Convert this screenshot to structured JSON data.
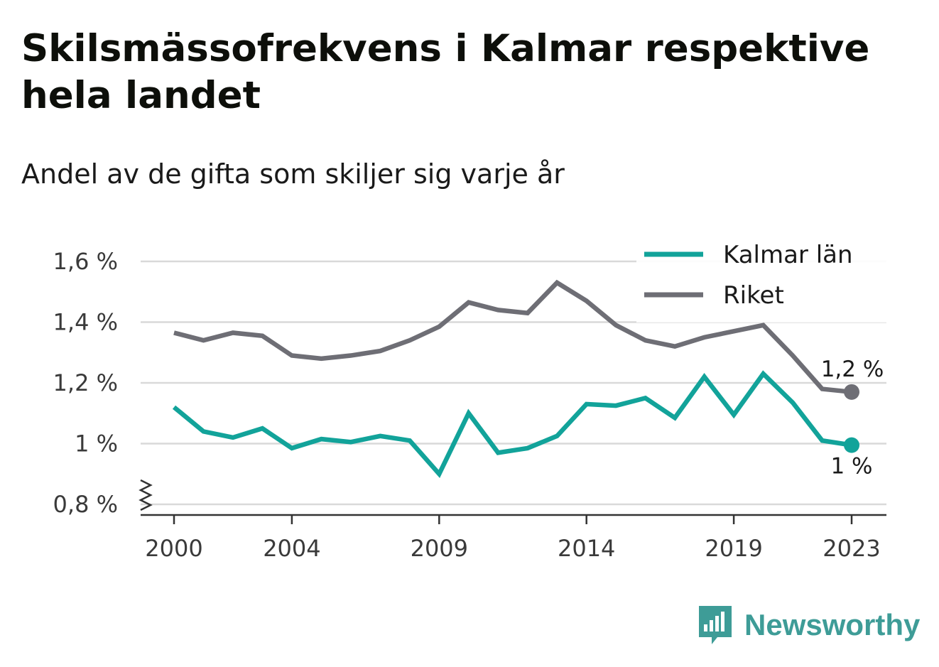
{
  "title": "Skilsmässofrekvens i Kalmar respektive hela landet",
  "subtitle": "Andel av de gifta som skiljer sig varje år",
  "brand": "Newsworthy",
  "colors": {
    "kalmar": "#12a39a",
    "riket": "#6e6e75",
    "grid": "#d9d9d9",
    "axis": "#333333",
    "brand": "#3e9c97"
  },
  "chart_data": {
    "type": "line",
    "ylim": [
      0.8,
      1.6
    ],
    "y_ticks": [
      {
        "value": 0.8,
        "label": "0,8 %"
      },
      {
        "value": 1.0,
        "label": "1 %"
      },
      {
        "value": 1.2,
        "label": "1,2 %"
      },
      {
        "value": 1.4,
        "label": "1,4 %"
      },
      {
        "value": 1.6,
        "label": "1,6 %"
      }
    ],
    "x_tick_labels": [
      "2000",
      "2004",
      "2009",
      "2014",
      "2019",
      "2023"
    ],
    "x": [
      2000,
      2001,
      2002,
      2003,
      2004,
      2005,
      2006,
      2007,
      2008,
      2009,
      2010,
      2011,
      2012,
      2013,
      2014,
      2015,
      2016,
      2017,
      2018,
      2019,
      2020,
      2021,
      2022,
      2023
    ],
    "y_axis_break": true,
    "grid": true,
    "legend_position": "top-right",
    "series": [
      {
        "name": "Kalmar län",
        "color_key": "kalmar",
        "values": [
          1.12,
          1.04,
          1.02,
          1.05,
          0.985,
          1.015,
          1.005,
          1.025,
          1.01,
          0.9,
          1.1,
          0.97,
          0.985,
          1.025,
          1.13,
          1.125,
          1.15,
          1.085,
          1.22,
          1.095,
          1.23,
          1.135,
          1.01,
          0.995
        ],
        "end_label": "1 %"
      },
      {
        "name": "Riket",
        "color_key": "riket",
        "values": [
          1.365,
          1.34,
          1.365,
          1.355,
          1.29,
          1.28,
          1.29,
          1.305,
          1.34,
          1.385,
          1.465,
          1.44,
          1.43,
          1.53,
          1.47,
          1.39,
          1.34,
          1.32,
          1.35,
          1.37,
          1.39,
          1.29,
          1.18,
          1.17
        ],
        "end_label": "1,2 %"
      }
    ]
  }
}
